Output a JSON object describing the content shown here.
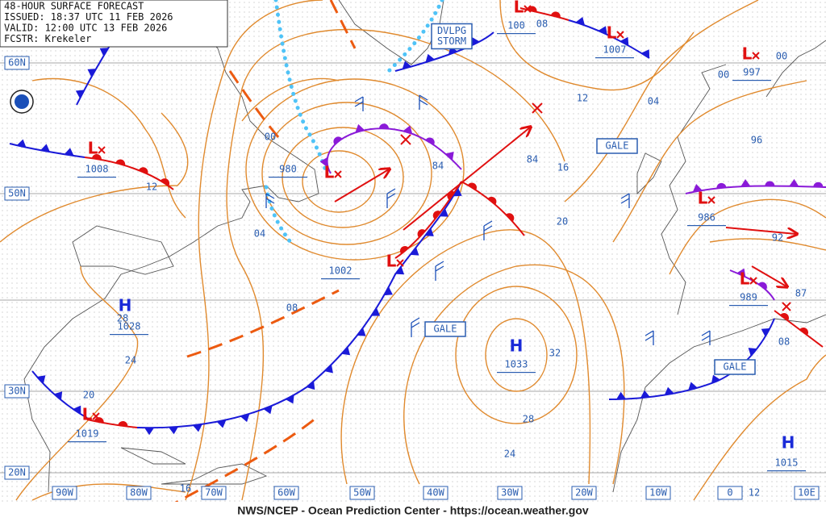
{
  "header": {
    "lines": [
      "48-HOUR SURFACE FORECAST",
      "ISSUED: 18:37 UTC 11 FEB 2026",
      "VALID:  12:00 UTC 13 FEB 2026",
      "FCSTR:  Krekeler"
    ]
  },
  "footer": "NWS/NCEP - Ocean Prediction Center - https://ocean.weather.gov",
  "latitude_labels": [
    "60N",
    "50N",
    "30N",
    "20N"
  ],
  "longitude_labels": [
    "90W",
    "80W",
    "70W",
    "60W",
    "50W",
    "40W",
    "30W",
    "20W",
    "10W",
    "0",
    "10E"
  ],
  "pressure_centers": [
    {
      "symbol": "L",
      "value": "1008"
    },
    {
      "symbol": "L",
      "value": "980"
    },
    {
      "symbol": "L",
      "value": "1002"
    },
    {
      "symbol": "H",
      "value": "1028"
    },
    {
      "symbol": "H",
      "value": "1033"
    },
    {
      "symbol": "L",
      "value": "1019"
    },
    {
      "symbol": "L",
      "value": "1007"
    },
    {
      "symbol": "L",
      "value": "100"
    },
    {
      "symbol": "L",
      "value": "997"
    },
    {
      "symbol": "L",
      "value": "986"
    },
    {
      "symbol": "L",
      "value": "989"
    },
    {
      "symbol": "H",
      "value": "1015"
    }
  ],
  "isobar_labels": [
    "00",
    "04",
    "08",
    "12",
    "12",
    "04",
    "16",
    "20",
    "24",
    "28",
    "24",
    "32",
    "20",
    "28",
    "16",
    "96",
    "00",
    "00",
    "92",
    "08",
    "12",
    "08",
    "84",
    "84",
    "87"
  ],
  "warning_boxes": [
    [
      "DVLPG",
      "STORM"
    ],
    [
      "GALE"
    ],
    [
      "GALE"
    ],
    [
      "GALE"
    ]
  ]
}
